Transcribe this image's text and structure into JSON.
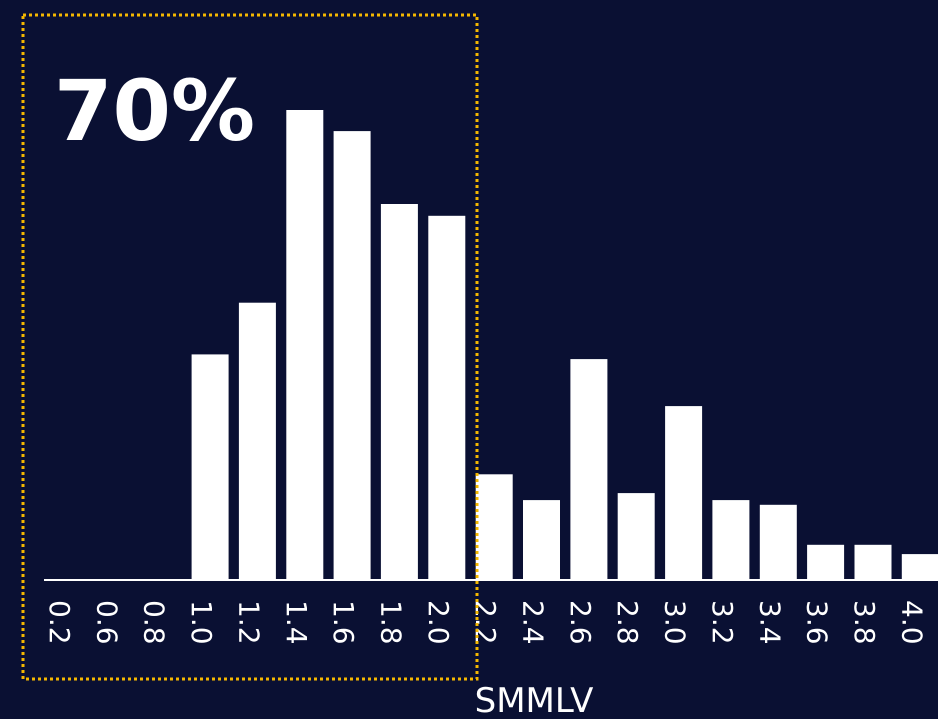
{
  "chart_data": {
    "type": "bar",
    "categories": [
      "0.2",
      "0.6",
      "0.8",
      "1.0",
      "1.2",
      "1.4",
      "1.6",
      "1.8",
      "2.0",
      "2.2",
      "2.4",
      "2.6",
      "2.8",
      "3.0",
      "3.2",
      "3.4",
      "3.6",
      "3.8",
      "4.0"
    ],
    "values": [
      0,
      0,
      0,
      48,
      59,
      100,
      95.5,
      80,
      77.5,
      22.5,
      17,
      47,
      18.5,
      37,
      17,
      16,
      7.5,
      7.5,
      5.5
    ],
    "title": "",
    "xlabel": "SMMLV",
    "ylabel": "",
    "ylim": [
      0,
      100
    ],
    "grid": false,
    "annotations": [
      {
        "text": "70%",
        "range": [
          "0.2",
          "2.0"
        ],
        "style": "dashed-box"
      }
    ],
    "colors": {
      "background": "#0a1033",
      "bars": "#ffffff",
      "axis": "#ffffff",
      "highlight_box": "#f5b800"
    }
  }
}
